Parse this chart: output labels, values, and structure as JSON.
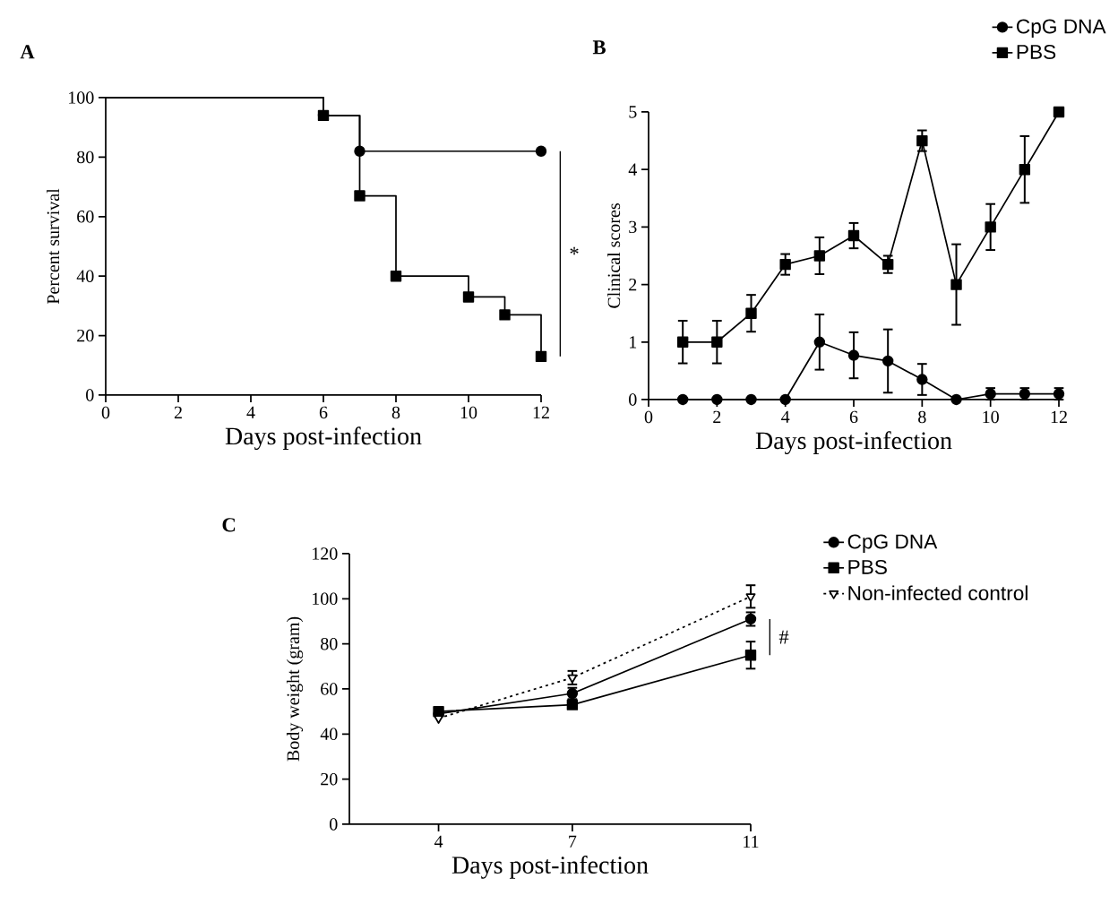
{
  "chart_data": [
    {
      "type": "step",
      "title": "A",
      "xlabel": "Days post-infection",
      "ylabel": "Percent survival",
      "xlim": [
        0,
        12
      ],
      "ylim": [
        0,
        100
      ],
      "xticks": [
        0,
        2,
        4,
        6,
        8,
        10,
        12
      ],
      "yticks": [
        0,
        20,
        40,
        60,
        80,
        100
      ],
      "annotations": [
        "*"
      ],
      "series": [
        {
          "color": "#000000",
          "marker": "circle",
          "x": [
            0,
            6,
            7,
            12
          ],
          "values": [
            100,
            94,
            82,
            82
          ]
        },
        {
          "color": "#000000",
          "marker": "square",
          "x": [
            0,
            6,
            7,
            8,
            10,
            11,
            12
          ],
          "values": [
            100,
            94,
            67,
            40,
            33,
            27,
            13
          ]
        }
      ]
    },
    {
      "type": "line",
      "title": "B",
      "xlabel": "Days post-infection",
      "ylabel": "Clinical scores",
      "xlim": [
        0,
        12
      ],
      "ylim": [
        0,
        5
      ],
      "xticks": [
        0,
        2,
        4,
        6,
        8,
        10,
        12
      ],
      "yticks": [
        0,
        1,
        2,
        3,
        4,
        5
      ],
      "legend": "top right",
      "x": [
        1,
        2,
        3,
        4,
        5,
        6,
        7,
        8,
        9,
        10,
        11,
        12
      ],
      "series": [
        {
          "name": "CpG DNA",
          "color": "#000000",
          "marker": "circle",
          "values": [
            0,
            0,
            0,
            0,
            1,
            0.77,
            0.67,
            0.35,
            0,
            0.1,
            0.1,
            0.1
          ],
          "errors": [
            null,
            null,
            null,
            null,
            0.48,
            0.4,
            0.55,
            0.27,
            null,
            0.1,
            0.1,
            0.1
          ]
        },
        {
          "name": "PBS",
          "color": "#000000",
          "marker": "square",
          "values": [
            1,
            1,
            1.5,
            2.35,
            2.5,
            2.85,
            2.35,
            4.5,
            2,
            3,
            4,
            5
          ],
          "errors": [
            0.37,
            0.37,
            0.32,
            0.18,
            0.32,
            0.22,
            0.15,
            0.18,
            0.7,
            0.4,
            0.58,
            null
          ]
        }
      ]
    },
    {
      "type": "line",
      "title": "C",
      "xlabel": "Days post-infection",
      "ylabel": "Body weight (gram)",
      "xlim": [
        2,
        11
      ],
      "ylim": [
        0,
        120
      ],
      "xticks": [
        4,
        7,
        11
      ],
      "yticks": [
        0,
        20,
        40,
        60,
        80,
        100,
        120
      ],
      "legend": "right",
      "annotations": [
        "#"
      ],
      "x": [
        4,
        7,
        11
      ],
      "series": [
        {
          "name": "CpG DNA",
          "color": "#000000",
          "marker": "circle",
          "line_style": "solid",
          "values": [
            49,
            58,
            91
          ],
          "errors": [
            null,
            2.5,
            3
          ]
        },
        {
          "name": "PBS",
          "color": "#000000",
          "marker": "square",
          "line_style": "solid",
          "values": [
            50,
            53,
            75
          ],
          "errors": [
            null,
            1.5,
            6
          ]
        },
        {
          "name": "Non-infected control",
          "color": "#000000",
          "marker": "triangle",
          "line_style": "dotted",
          "values": [
            47,
            65,
            101
          ],
          "errors": [
            null,
            3,
            5
          ]
        }
      ]
    }
  ]
}
